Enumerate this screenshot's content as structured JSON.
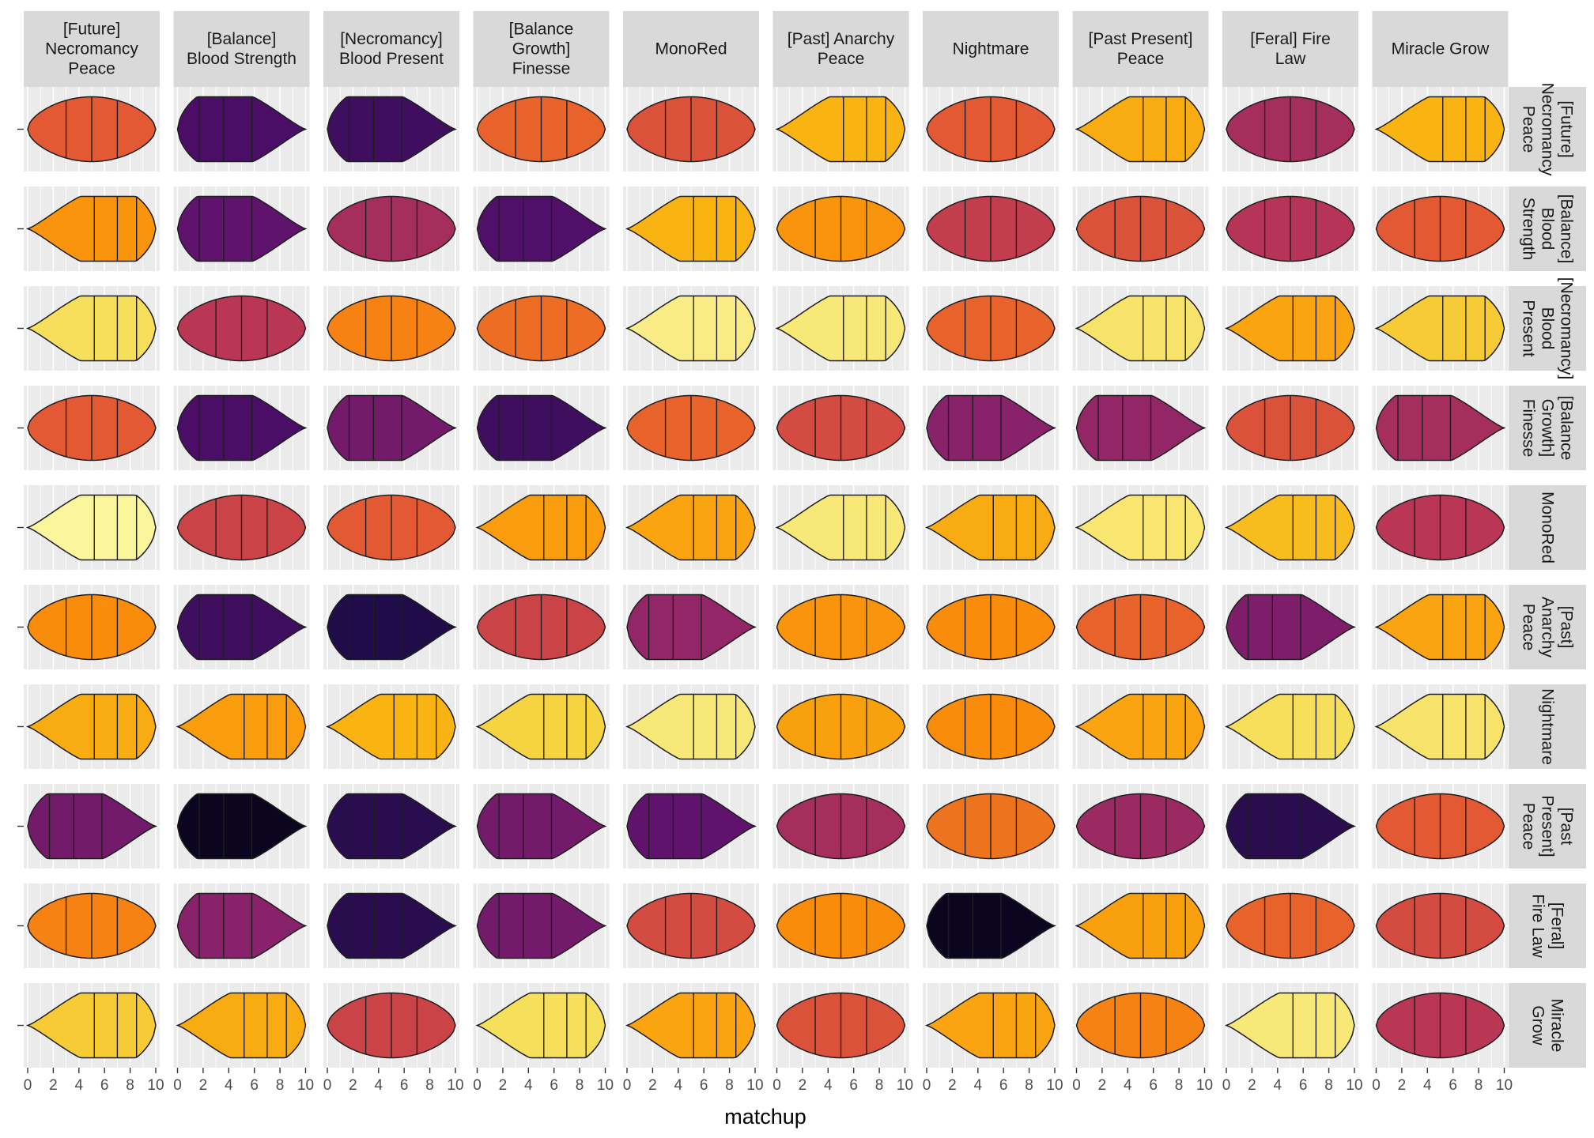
{
  "chart_data": {
    "type": "violin",
    "xlabel": "matchup",
    "xlim": [
      0,
      10
    ],
    "x_ticks": [
      "0",
      "2",
      "4",
      "6",
      "8",
      "10"
    ],
    "quantile_lines": [
      0.25,
      0.5,
      0.75
    ],
    "grid": "on",
    "legend": "none",
    "facet_cols": [
      "[Future] Necromancy Peace",
      "[Balance] Blood Strength",
      "[Necromancy] Blood Present",
      "[Balance Growth] Finesse",
      "MonoRed",
      "[Past] Anarchy Peace",
      "Nightmare",
      "[Past Present] Peace",
      "[Feral] Fire Law",
      "Miracle Grow"
    ],
    "col_labels": [
      [
        "[Future]",
        "Necromancy",
        "Peace"
      ],
      [
        "[Balance]",
        "Blood Strength"
      ],
      [
        "[Necromancy]",
        "Blood Present"
      ],
      [
        "[Balance",
        "Growth]",
        "Finesse"
      ],
      [
        "MonoRed"
      ],
      [
        "[Past] Anarchy",
        "Peace"
      ],
      [
        "Nightmare"
      ],
      [
        "[Past Present]",
        "Peace"
      ],
      [
        "[Feral] Fire",
        "Law"
      ],
      [
        "Miracle Grow"
      ]
    ],
    "row_labels": [
      [
        "[Future]",
        "Necromancy",
        "Peace"
      ],
      [
        "[Balance]",
        "Blood",
        "Strength"
      ],
      [
        "[Necromancy]",
        "Blood",
        "Present"
      ],
      [
        "[Balance",
        "Growth]",
        "Finesse"
      ],
      [
        "MonoRed"
      ],
      [
        "[Past]",
        "Anarchy",
        "Peace"
      ],
      [
        "Nightmare"
      ],
      [
        "[Past",
        "Present]",
        "Peace"
      ],
      [
        "[Feral]",
        "Fire Law"
      ],
      [
        "Miracle",
        "Grow"
      ]
    ],
    "mean_matchup": [
      [
        5.0,
        1.8,
        1.6,
        5.2,
        4.8,
        7.0,
        5.0,
        6.8,
        3.6,
        7.0
      ],
      [
        6.2,
        2.2,
        3.6,
        1.9,
        7.0,
        6.2,
        4.2,
        4.8,
        3.9,
        5.0
      ],
      [
        8.2,
        4.0,
        5.8,
        5.4,
        8.8,
        8.6,
        5.2,
        8.4,
        6.6,
        7.6
      ],
      [
        5.0,
        1.8,
        2.6,
        1.6,
        5.2,
        4.6,
        3.0,
        3.2,
        4.8,
        3.6
      ],
      [
        9.4,
        4.4,
        5.0,
        6.4,
        6.6,
        8.6,
        6.8,
        8.5,
        7.2,
        4.0
      ],
      [
        6.0,
        1.6,
        1.0,
        4.4,
        3.2,
        6.2,
        6.0,
        5.2,
        2.8,
        6.6
      ],
      [
        6.8,
        6.4,
        7.0,
        7.8,
        8.6,
        6.5,
        6.0,
        6.6,
        8.2,
        8.4
      ],
      [
        2.6,
        0.4,
        1.2,
        2.6,
        2.2,
        3.6,
        5.5,
        3.4,
        1.2,
        5.0
      ],
      [
        5.8,
        3.0,
        1.2,
        2.6,
        4.6,
        6.0,
        0.4,
        6.5,
        5.2,
        4.6
      ],
      [
        7.6,
        6.8,
        4.4,
        8.2,
        6.6,
        4.8,
        6.6,
        5.8,
        8.6,
        4.0
      ]
    ],
    "skew": [
      [
        0,
        1,
        1,
        0,
        0,
        -1,
        0,
        -1,
        0,
        -1
      ],
      [
        -1,
        1,
        0,
        1,
        -1,
        0,
        0,
        0,
        0,
        0
      ],
      [
        -1,
        0,
        0,
        0,
        -1,
        -1,
        0,
        -1,
        -1,
        -1
      ],
      [
        0,
        1,
        1,
        1,
        0,
        0,
        1,
        1,
        0,
        1
      ],
      [
        -1,
        0,
        0,
        -1,
        -1,
        -1,
        -1,
        -1,
        -1,
        0
      ],
      [
        0,
        1,
        1,
        0,
        1,
        0,
        0,
        0,
        1,
        -1
      ],
      [
        -1,
        -1,
        -1,
        -1,
        -1,
        0,
        0,
        -1,
        -1,
        -1
      ],
      [
        1,
        1,
        1,
        1,
        1,
        0,
        0,
        0,
        1,
        0
      ],
      [
        0,
        1,
        1,
        1,
        0,
        0,
        1,
        -1,
        0,
        0
      ],
      [
        -1,
        -1,
        0,
        -1,
        -1,
        0,
        -1,
        0,
        -1,
        0
      ]
    ],
    "colors": {
      "panel_background": "#EBEBEB",
      "grid_line": "#FFFFFF",
      "strip_background": "#D9D9D9",
      "violin_outline": "#1E1E1E",
      "palette": "inferno"
    }
  }
}
